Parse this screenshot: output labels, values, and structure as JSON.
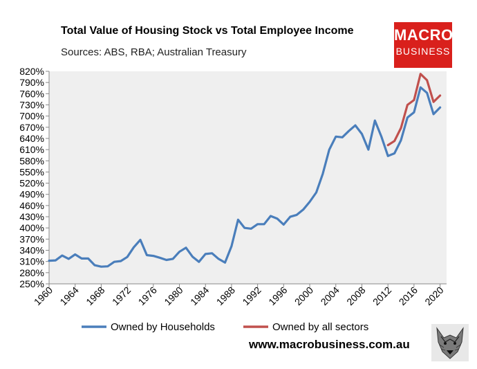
{
  "chart_data": {
    "type": "line",
    "title": "Total Value of Housing Stock vs Total Employee Income",
    "subtitle": "Sources: ABS, RBA; Australian Treasury",
    "xlabel": "",
    "ylabel": "",
    "ylim": [
      250,
      820
    ],
    "y_ticks": [
      250,
      280,
      310,
      340,
      370,
      400,
      430,
      460,
      490,
      520,
      550,
      580,
      610,
      640,
      670,
      700,
      730,
      760,
      790,
      820
    ],
    "y_tick_suffix": "%",
    "xlim": [
      1960,
      2021
    ],
    "x_ticks": [
      1960,
      1964,
      1968,
      1972,
      1976,
      1980,
      1984,
      1988,
      1992,
      1996,
      2000,
      2004,
      2008,
      2012,
      2016,
      2020
    ],
    "legend_position": "bottom",
    "series": [
      {
        "name": "Owned by Households",
        "color": "#4a7ebb",
        "x": [
          1960,
          1961,
          1962,
          1963,
          1964,
          1965,
          1966,
          1967,
          1968,
          1969,
          1970,
          1971,
          1972,
          1973,
          1974,
          1975,
          1976,
          1977,
          1978,
          1979,
          1980,
          1981,
          1982,
          1983,
          1984,
          1985,
          1986,
          1987,
          1988,
          1989,
          1990,
          1991,
          1992,
          1993,
          1994,
          1995,
          1996,
          1997,
          1998,
          1999,
          2000,
          2001,
          2002,
          2003,
          2004,
          2005,
          2006,
          2007,
          2008,
          2009,
          2010,
          2011,
          2012,
          2013,
          2014,
          2015,
          2016,
          2017,
          2018,
          2019,
          2020
        ],
        "values": [
          312,
          313,
          326,
          317,
          329,
          318,
          318,
          300,
          296,
          297,
          309,
          311,
          322,
          348,
          368,
          327,
          325,
          320,
          314,
          317,
          336,
          347,
          323,
          309,
          330,
          332,
          317,
          307,
          351,
          422,
          400,
          398,
          410,
          410,
          432,
          425,
          409,
          430,
          435,
          449,
          470,
          495,
          545,
          610,
          645,
          643,
          660,
          675,
          652,
          610,
          688,
          645,
          593,
          600,
          635,
          696,
          710,
          777,
          762,
          705,
          723
        ]
      },
      {
        "name": "Owned by all sectors",
        "color": "#c0504d",
        "x": [
          2012,
          2013,
          2014,
          2015,
          2016,
          2017,
          2018,
          2019,
          2020
        ],
        "values": [
          622,
          633,
          668,
          730,
          743,
          813,
          796,
          738,
          755
        ]
      }
    ]
  },
  "footer": {
    "url": "www.macrobusiness.com.au",
    "logo_line1": "MACRO",
    "logo_line2": "BUSINESS",
    "wolf_icon": "wolf-head-icon"
  },
  "colors": {
    "plot_background": "#efefef",
    "logo_red": "#d9201c"
  }
}
